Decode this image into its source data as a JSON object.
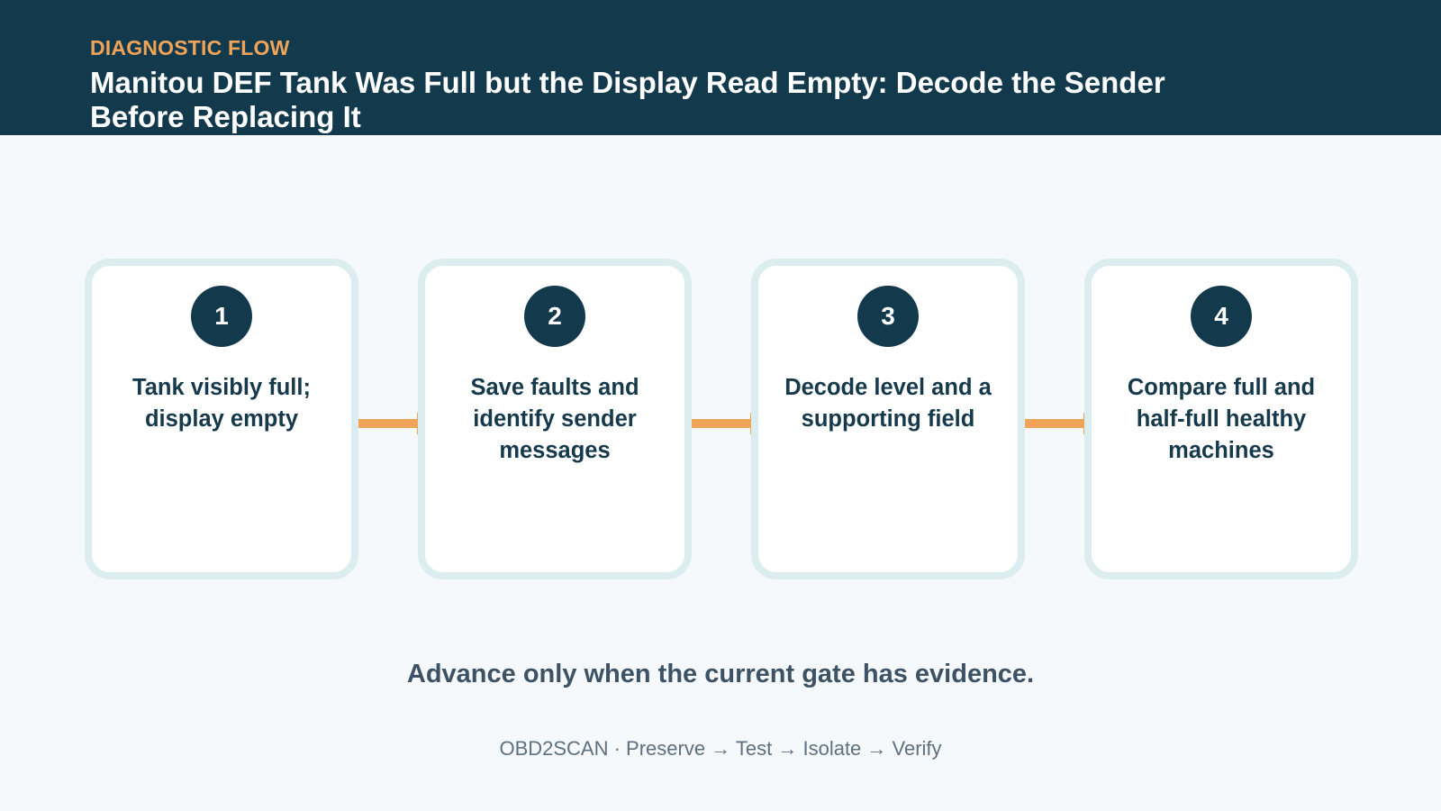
{
  "header": {
    "eyebrow": "DIAGNOSTIC FLOW",
    "title": "Manitou DEF Tank Was Full but the Display Read Empty: Decode the Sender Before Replacing It"
  },
  "steps": [
    {
      "number": "1",
      "label": "Tank visibly full; display empty"
    },
    {
      "number": "2",
      "label": "Save faults and identify sender messages"
    },
    {
      "number": "3",
      "label": "Decode level and a supporting field"
    },
    {
      "number": "4",
      "label": "Compare full and half-full healthy machines"
    }
  ],
  "tagline": "Advance only when the current gate has evidence.",
  "footer": "OBD2SCAN · Preserve → Test → Isolate → Verify"
}
